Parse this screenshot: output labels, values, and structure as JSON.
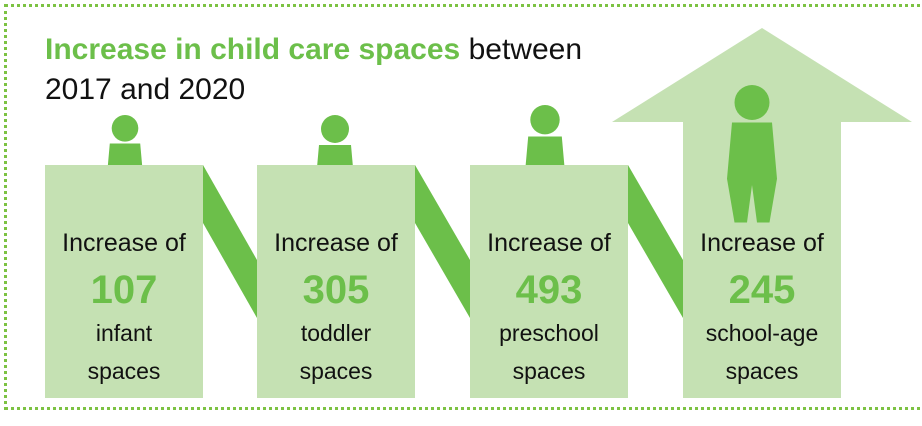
{
  "title": {
    "highlight": "Increase in child care spaces",
    "rest": "between 2017 and 2020"
  },
  "items": [
    {
      "prefix": "Increase of",
      "number": "107",
      "label": [
        "infant",
        "spaces"
      ]
    },
    {
      "prefix": "Increase of",
      "number": "305",
      "label": [
        "toddler",
        "spaces"
      ]
    },
    {
      "prefix": "Increase of",
      "number": "493",
      "label": [
        "preschool",
        "spaces"
      ]
    },
    {
      "prefix": "Increase of",
      "number": "245",
      "label": [
        "school-age",
        "spaces"
      ]
    }
  ]
}
